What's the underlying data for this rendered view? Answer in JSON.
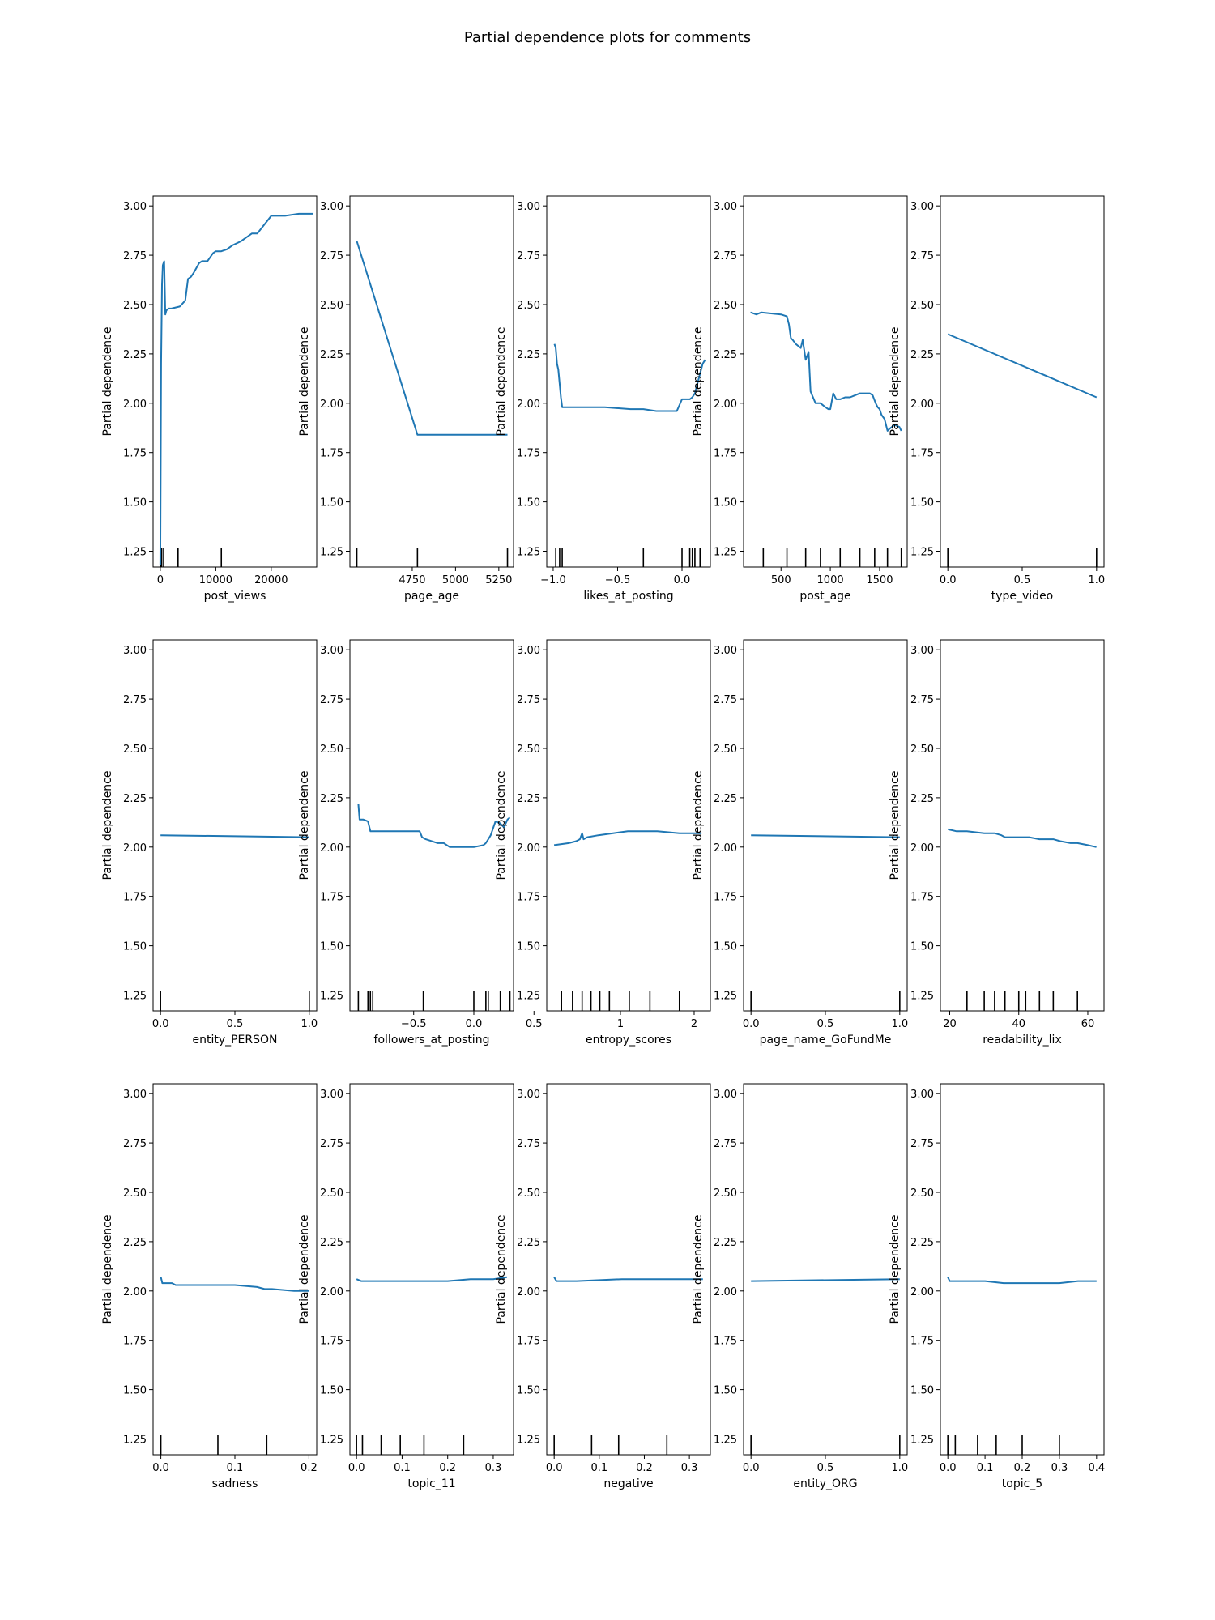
{
  "figure_title": "Partial dependence plots for comments",
  "line_color": "#1f77b4",
  "chart_data": [
    {
      "type": "line",
      "xlabel": "post_views",
      "ylabel": "Partial dependence",
      "ylim": [
        1.17,
        3.05
      ],
      "xlim": [
        -1300,
        28200
      ],
      "yticks": [
        1.25,
        1.5,
        1.75,
        2.0,
        2.25,
        2.5,
        2.75,
        3.0
      ],
      "ytick_labels": [
        "1.25",
        "1.50",
        "1.75",
        "2.00",
        "2.25",
        "2.50",
        "2.75",
        "3.00"
      ],
      "xticks": [
        0,
        10000,
        20000
      ],
      "xtick_labels": [
        "0",
        "10000",
        "20000"
      ],
      "deciles": [
        50,
        250,
        600,
        3200,
        11000
      ],
      "x": [
        0,
        150,
        300,
        450,
        700,
        900,
        1100,
        1500,
        2000,
        3500,
        4500,
        5000,
        5500,
        6000,
        7000,
        7500,
        8500,
        9500,
        10000,
        11000,
        12000,
        13000,
        14500,
        15500,
        16500,
        17500,
        20000,
        21000,
        22500,
        25000,
        26500,
        27600
      ],
      "y": [
        1.18,
        2.2,
        2.6,
        2.7,
        2.72,
        2.45,
        2.47,
        2.48,
        2.48,
        2.49,
        2.52,
        2.63,
        2.64,
        2.66,
        2.71,
        2.72,
        2.72,
        2.76,
        2.77,
        2.77,
        2.78,
        2.8,
        2.82,
        2.84,
        2.86,
        2.86,
        2.95,
        2.95,
        2.95,
        2.96,
        2.96,
        2.96
      ]
    },
    {
      "type": "line",
      "xlabel": "page_age",
      "ylabel": "Partial dependence",
      "ylim": [
        1.17,
        3.05
      ],
      "xlim": [
        4390,
        5335
      ],
      "yticks": [
        1.25,
        1.5,
        1.75,
        2.0,
        2.25,
        2.5,
        2.75,
        3.0
      ],
      "ytick_labels": [
        "1.25",
        "1.50",
        "1.75",
        "2.00",
        "2.25",
        "2.50",
        "2.75",
        "3.00"
      ],
      "xticks": [
        4750,
        5000,
        5250
      ],
      "xtick_labels": [
        "4750",
        "5000",
        "5250"
      ],
      "deciles": [
        4430,
        4780,
        5300
      ],
      "x": [
        4430,
        4780,
        5300
      ],
      "y": [
        2.82,
        1.84,
        1.84
      ]
    },
    {
      "type": "line",
      "xlabel": "likes_at_posting",
      "ylabel": "Partial dependence",
      "ylim": [
        1.17,
        3.05
      ],
      "xlim": [
        -1.05,
        0.22
      ],
      "yticks": [
        1.25,
        1.5,
        1.75,
        2.0,
        2.25,
        2.5,
        2.75,
        3.0
      ],
      "ytick_labels": [
        "1.25",
        "1.50",
        "1.75",
        "2.00",
        "2.25",
        "2.50",
        "2.75",
        "3.00"
      ],
      "xticks": [
        -1.0,
        -0.5,
        0.0
      ],
      "xtick_labels": [
        "−1.0",
        "−0.5",
        "0.0"
      ],
      "deciles": [
        -0.98,
        -0.95,
        -0.93,
        -0.3,
        0.0,
        0.06,
        0.08,
        0.1,
        0.14
      ],
      "x": [
        -0.99,
        -0.98,
        -0.97,
        -0.96,
        -0.95,
        -0.94,
        -0.93,
        -0.9,
        -0.6,
        -0.4,
        -0.3,
        -0.2,
        -0.1,
        -0.05,
        -0.04,
        0.0,
        0.04,
        0.06,
        0.08,
        0.1,
        0.12,
        0.14,
        0.16,
        0.18
      ],
      "y": [
        2.3,
        2.28,
        2.2,
        2.17,
        2.1,
        2.03,
        1.98,
        1.98,
        1.98,
        1.97,
        1.97,
        1.96,
        1.96,
        1.96,
        1.96,
        2.02,
        2.02,
        2.02,
        2.03,
        2.05,
        2.1,
        2.15,
        2.2,
        2.22
      ]
    },
    {
      "type": "line",
      "xlabel": "post_age",
      "ylabel": "Partial dependence",
      "ylim": [
        1.17,
        3.05
      ],
      "xlim": [
        120,
        1780
      ],
      "yticks": [
        1.25,
        1.5,
        1.75,
        2.0,
        2.25,
        2.5,
        2.75,
        3.0
      ],
      "ytick_labels": [
        "1.25",
        "1.50",
        "1.75",
        "2.00",
        "2.25",
        "2.50",
        "2.75",
        "3.00"
      ],
      "xticks": [
        500,
        1000,
        1500
      ],
      "xtick_labels": [
        "500",
        "1000",
        "1500"
      ],
      "deciles": [
        320,
        560,
        750,
        900,
        1100,
        1300,
        1450,
        1580,
        1720
      ],
      "x": [
        190,
        250,
        300,
        500,
        560,
        580,
        600,
        620,
        650,
        700,
        720,
        750,
        780,
        800,
        850,
        900,
        950,
        980,
        1000,
        1030,
        1060,
        1100,
        1150,
        1200,
        1250,
        1300,
        1350,
        1400,
        1430,
        1460,
        1480,
        1500,
        1520,
        1550,
        1580,
        1600,
        1650,
        1700,
        1720
      ],
      "y": [
        2.46,
        2.45,
        2.46,
        2.45,
        2.44,
        2.4,
        2.33,
        2.32,
        2.3,
        2.28,
        2.32,
        2.22,
        2.26,
        2.06,
        2.0,
        2.0,
        1.98,
        1.97,
        1.97,
        2.05,
        2.02,
        2.02,
        2.03,
        2.03,
        2.04,
        2.05,
        2.05,
        2.05,
        2.04,
        2.0,
        1.98,
        1.97,
        1.94,
        1.92,
        1.86,
        1.87,
        1.89,
        1.88,
        1.86
      ]
    },
    {
      "type": "line",
      "xlabel": "type_video",
      "ylabel": "Partial dependence",
      "ylim": [
        1.17,
        3.05
      ],
      "xlim": [
        -0.05,
        1.05
      ],
      "yticks": [
        1.25,
        1.5,
        1.75,
        2.0,
        2.25,
        2.5,
        2.75,
        3.0
      ],
      "ytick_labels": [
        "1.25",
        "1.50",
        "1.75",
        "2.00",
        "2.25",
        "2.50",
        "2.75",
        "3.00"
      ],
      "xticks": [
        0.0,
        0.5,
        1.0
      ],
      "xtick_labels": [
        "0.0",
        "0.5",
        "1.0"
      ],
      "deciles": [
        0.0,
        1.0
      ],
      "x": [
        0.0,
        1.0
      ],
      "y": [
        2.35,
        2.03
      ]
    },
    {
      "type": "line",
      "xlabel": "entity_PERSON",
      "ylabel": "Partial dependence",
      "ylim": [
        1.17,
        3.05
      ],
      "xlim": [
        -0.05,
        1.05
      ],
      "yticks": [
        1.25,
        1.5,
        1.75,
        2.0,
        2.25,
        2.5,
        2.75,
        3.0
      ],
      "ytick_labels": [
        "1.25",
        "1.50",
        "1.75",
        "2.00",
        "2.25",
        "2.50",
        "2.75",
        "3.00"
      ],
      "xticks": [
        0.0,
        0.5,
        1.0
      ],
      "xtick_labels": [
        "0.0",
        "0.5",
        "1.0"
      ],
      "deciles": [
        0.0,
        1.0
      ],
      "x": [
        0.0,
        1.0
      ],
      "y": [
        2.06,
        2.05
      ]
    },
    {
      "type": "line",
      "xlabel": "followers_at_posting",
      "ylabel": "Partial dependence",
      "ylim": [
        1.17,
        3.05
      ],
      "xlim": [
        -1.03,
        0.33
      ],
      "yticks": [
        1.25,
        1.5,
        1.75,
        2.0,
        2.25,
        2.5,
        2.75,
        3.0
      ],
      "ytick_labels": [
        "1.25",
        "1.50",
        "1.75",
        "2.00",
        "2.25",
        "2.50",
        "2.75",
        "3.00"
      ],
      "xticks": [
        -0.5,
        0.0,
        0.5
      ],
      "xtick_labels": [
        "−0.5",
        "0.0",
        "0.5"
      ],
      "deciles": [
        -0.96,
        -0.88,
        -0.86,
        -0.84,
        -0.42,
        0.0,
        0.1,
        0.12,
        0.22,
        0.3
      ],
      "x": [
        -0.96,
        -0.95,
        -0.92,
        -0.88,
        -0.86,
        -0.8,
        -0.6,
        -0.45,
        -0.43,
        -0.4,
        -0.3,
        -0.25,
        -0.2,
        -0.1,
        0.0,
        0.08,
        0.1,
        0.12,
        0.14,
        0.18,
        0.22,
        0.25,
        0.28,
        0.3
      ],
      "y": [
        2.22,
        2.14,
        2.14,
        2.13,
        2.08,
        2.08,
        2.08,
        2.08,
        2.05,
        2.04,
        2.02,
        2.02,
        2.0,
        2.0,
        2.0,
        2.01,
        2.02,
        2.04,
        2.06,
        2.13,
        2.12,
        2.1,
        2.14,
        2.15
      ]
    },
    {
      "type": "line",
      "xlabel": "entropy_scores",
      "ylabel": "Partial dependence",
      "ylim": [
        1.17,
        3.05
      ],
      "xlim": [
        0.0,
        2.22
      ],
      "yticks": [
        1.25,
        1.5,
        1.75,
        2.0,
        2.25,
        2.5,
        2.75,
        3.0
      ],
      "ytick_labels": [
        "1.25",
        "1.50",
        "1.75",
        "2.00",
        "2.25",
        "2.50",
        "2.75",
        "3.00"
      ],
      "xticks": [
        1,
        2
      ],
      "xtick_labels": [
        "1",
        "2"
      ],
      "deciles": [
        0.2,
        0.35,
        0.48,
        0.6,
        0.72,
        0.85,
        1.12,
        1.4,
        1.8
      ],
      "x": [
        0.1,
        0.3,
        0.4,
        0.45,
        0.48,
        0.5,
        0.55,
        0.7,
        0.9,
        1.1,
        1.2,
        1.5,
        1.8,
        2.1
      ],
      "y": [
        2.01,
        2.02,
        2.03,
        2.04,
        2.07,
        2.04,
        2.05,
        2.06,
        2.07,
        2.08,
        2.08,
        2.08,
        2.07,
        2.07
      ]
    },
    {
      "type": "line",
      "xlabel": "page_name_GoFundMe",
      "ylabel": "Partial dependence",
      "ylim": [
        1.17,
        3.05
      ],
      "xlim": [
        -0.05,
        1.05
      ],
      "yticks": [
        1.25,
        1.5,
        1.75,
        2.0,
        2.25,
        2.5,
        2.75,
        3.0
      ],
      "ytick_labels": [
        "1.25",
        "1.50",
        "1.75",
        "2.00",
        "2.25",
        "2.50",
        "2.75",
        "3.00"
      ],
      "xticks": [
        0.0,
        0.5,
        1.0
      ],
      "xtick_labels": [
        "0.0",
        "0.5",
        "1.0"
      ],
      "deciles": [
        0.0,
        1.0
      ],
      "x": [
        0.0,
        1.0
      ],
      "y": [
        2.06,
        2.05
      ]
    },
    {
      "type": "line",
      "xlabel": "readability_lix",
      "ylabel": "Partial dependence",
      "ylim": [
        1.17,
        3.05
      ],
      "xlim": [
        17.3,
        64.7
      ],
      "yticks": [
        1.25,
        1.5,
        1.75,
        2.0,
        2.25,
        2.5,
        2.75,
        3.0
      ],
      "ytick_labels": [
        "1.25",
        "1.50",
        "1.75",
        "2.00",
        "2.25",
        "2.50",
        "2.75",
        "3.00"
      ],
      "xticks": [
        20,
        40,
        60
      ],
      "xtick_labels": [
        "20",
        "40",
        "60"
      ],
      "deciles": [
        25,
        30,
        33,
        36,
        40,
        42,
        46,
        50,
        57
      ],
      "x": [
        19.5,
        22,
        25,
        30,
        33,
        35,
        36,
        40,
        43,
        46,
        48,
        50,
        52,
        55,
        57,
        60,
        62.5
      ],
      "y": [
        2.09,
        2.08,
        2.08,
        2.07,
        2.07,
        2.06,
        2.05,
        2.05,
        2.05,
        2.04,
        2.04,
        2.04,
        2.03,
        2.02,
        2.02,
        2.01,
        2.0
      ]
    },
    {
      "type": "line",
      "xlabel": "sadness",
      "ylabel": "Partial dependence",
      "ylim": [
        1.17,
        3.05
      ],
      "xlim": [
        -0.0105,
        0.2105
      ],
      "yticks": [
        1.25,
        1.5,
        1.75,
        2.0,
        2.25,
        2.5,
        2.75,
        3.0
      ],
      "ytick_labels": [
        "1.25",
        "1.50",
        "1.75",
        "2.00",
        "2.25",
        "2.50",
        "2.75",
        "3.00"
      ],
      "xticks": [
        0.0,
        0.1,
        0.2
      ],
      "xtick_labels": [
        "0.0",
        "0.1",
        "0.2"
      ],
      "deciles": [
        0.0,
        0.077,
        0.143
      ],
      "x": [
        0.0,
        0.002,
        0.015,
        0.02,
        0.05,
        0.08,
        0.1,
        0.13,
        0.14,
        0.15,
        0.18,
        0.2
      ],
      "y": [
        2.07,
        2.04,
        2.04,
        2.03,
        2.03,
        2.03,
        2.03,
        2.02,
        2.01,
        2.01,
        2.0,
        2.0
      ]
    },
    {
      "type": "line",
      "xlabel": "topic_11",
      "ylabel": "Partial dependence",
      "ylim": [
        1.17,
        3.05
      ],
      "xlim": [
        -0.0145,
        0.3445
      ],
      "yticks": [
        1.25,
        1.5,
        1.75,
        2.0,
        2.25,
        2.5,
        2.75,
        3.0
      ],
      "ytick_labels": [
        "1.25",
        "1.50",
        "1.75",
        "2.00",
        "2.25",
        "2.50",
        "2.75",
        "3.00"
      ],
      "xticks": [
        0.0,
        0.1,
        0.2,
        0.3
      ],
      "xtick_labels": [
        "0.0",
        "0.1",
        "0.2",
        "0.3"
      ],
      "deciles": [
        0.0,
        0.013,
        0.054,
        0.096,
        0.148,
        0.235
      ],
      "x": [
        0.0,
        0.01,
        0.05,
        0.1,
        0.15,
        0.2,
        0.25,
        0.3,
        0.33
      ],
      "y": [
        2.06,
        2.05,
        2.05,
        2.05,
        2.05,
        2.05,
        2.06,
        2.06,
        2.07
      ]
    },
    {
      "type": "line",
      "xlabel": "negative",
      "ylabel": "Partial dependence",
      "ylim": [
        1.17,
        3.05
      ],
      "xlim": [
        -0.0165,
        0.3465
      ],
      "yticks": [
        1.25,
        1.5,
        1.75,
        2.0,
        2.25,
        2.5,
        2.75,
        3.0
      ],
      "ytick_labels": [
        "1.25",
        "1.50",
        "1.75",
        "2.00",
        "2.25",
        "2.50",
        "2.75",
        "3.00"
      ],
      "xticks": [
        0.0,
        0.1,
        0.2,
        0.3
      ],
      "xtick_labels": [
        "0.0",
        "0.1",
        "0.2",
        "0.3"
      ],
      "deciles": [
        0.0,
        0.083,
        0.143,
        0.25
      ],
      "x": [
        0.0,
        0.005,
        0.05,
        0.15,
        0.25,
        0.33
      ],
      "y": [
        2.07,
        2.05,
        2.05,
        2.06,
        2.06,
        2.06
      ]
    },
    {
      "type": "line",
      "xlabel": "entity_ORG",
      "ylabel": "Partial dependence",
      "ylim": [
        1.17,
        3.05
      ],
      "xlim": [
        -0.05,
        1.05
      ],
      "yticks": [
        1.25,
        1.5,
        1.75,
        2.0,
        2.25,
        2.5,
        2.75,
        3.0
      ],
      "ytick_labels": [
        "1.25",
        "1.50",
        "1.75",
        "2.00",
        "2.25",
        "2.50",
        "2.75",
        "3.00"
      ],
      "xticks": [
        0.0,
        0.5,
        1.0
      ],
      "xtick_labels": [
        "0.0",
        "0.5",
        "1.0"
      ],
      "deciles": [
        0.0,
        1.0
      ],
      "x": [
        0.0,
        1.0
      ],
      "y": [
        2.05,
        2.06
      ]
    },
    {
      "type": "line",
      "xlabel": "topic_5",
      "ylabel": "Partial dependence",
      "ylim": [
        1.17,
        3.05
      ],
      "xlim": [
        -0.02,
        0.42
      ],
      "yticks": [
        1.25,
        1.5,
        1.75,
        2.0,
        2.25,
        2.5,
        2.75,
        3.0
      ],
      "ytick_labels": [
        "1.25",
        "1.50",
        "1.75",
        "2.00",
        "2.25",
        "2.50",
        "2.75",
        "3.00"
      ],
      "xticks": [
        0.0,
        0.1,
        0.2,
        0.3,
        0.4
      ],
      "xtick_labels": [
        "0.0",
        "0.1",
        "0.2",
        "0.3",
        "0.4"
      ],
      "deciles": [
        0.0,
        0.02,
        0.08,
        0.13,
        0.2,
        0.3
      ],
      "x": [
        0.0,
        0.005,
        0.05,
        0.1,
        0.15,
        0.2,
        0.25,
        0.3,
        0.35,
        0.4
      ],
      "y": [
        2.07,
        2.05,
        2.05,
        2.05,
        2.04,
        2.04,
        2.04,
        2.04,
        2.05,
        2.05
      ]
    }
  ]
}
